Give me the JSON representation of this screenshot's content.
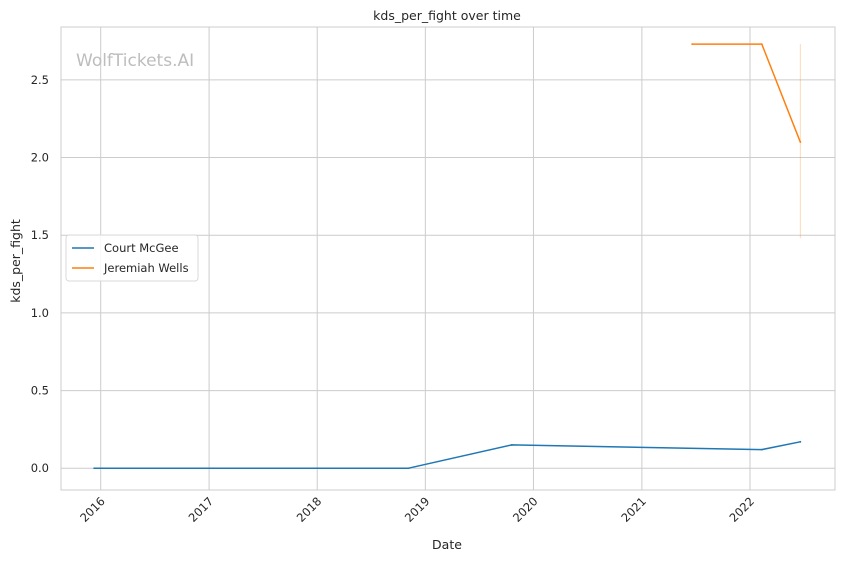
{
  "watermark": "WolfTickets.AI",
  "chart_data": {
    "type": "line",
    "title": "kds_per_fight over time",
    "xlabel": "Date",
    "ylabel": "kds_per_fight",
    "x_ticks": [
      "2016",
      "2017",
      "2018",
      "2019",
      "2020",
      "2021",
      "2022"
    ],
    "y_ticks": [
      "0.0",
      "0.5",
      "1.0",
      "1.5",
      "2.0",
      "2.5"
    ],
    "xlim": [
      "2015-08-20",
      "2022-10-15"
    ],
    "ylim": [
      -0.14,
      2.84
    ],
    "grid": true,
    "legend_position": "center-left",
    "series": [
      {
        "name": "Court McGee",
        "color": "#1f77b4",
        "x": [
          "2015-12-10",
          "2018-11-05",
          "2019-10-20",
          "2022-02-10",
          "2022-06-20"
        ],
        "y": [
          0.0,
          0.0,
          0.15,
          0.12,
          0.17
        ]
      },
      {
        "name": "Jeremiah Wells",
        "color": "#ff7f0e",
        "x": [
          "2021-06-20",
          "2022-02-10",
          "2022-06-20"
        ],
        "y": [
          2.73,
          2.73,
          2.1
        ],
        "error_bar": {
          "x": "2022-06-20",
          "low": 1.48,
          "high": 2.73
        }
      }
    ]
  }
}
